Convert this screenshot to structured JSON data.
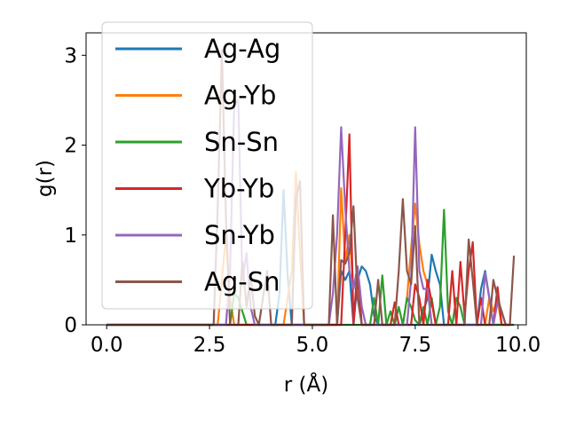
{
  "chart_data": {
    "type": "line",
    "title": "",
    "xlabel": "r (Å)",
    "ylabel": "g(r)",
    "xlim": [
      -0.5,
      10.2
    ],
    "ylim": [
      0,
      3.25
    ],
    "xticks": [
      0.0,
      2.5,
      5.0,
      7.5,
      10.0
    ],
    "xtick_labels": [
      "0.0",
      "2.5",
      "5.0",
      "7.5",
      "10.0"
    ],
    "yticks": [
      0,
      1,
      2,
      3
    ],
    "ytick_labels": [
      "0",
      "1",
      "2",
      "3"
    ],
    "legend_position": "upper-left",
    "series": [
      {
        "name": "Ag-Ag",
        "color": "#1f77b4",
        "x": [
          0,
          3.9,
          4.1,
          4.2,
          4.3,
          4.4,
          4.5,
          5.4,
          5.6,
          5.7,
          5.8,
          5.9,
          6.0,
          6.1,
          6.2,
          6.3,
          6.4,
          6.5,
          6.6,
          7.6,
          7.8,
          7.9,
          8.0,
          8.1,
          8.2,
          9.0,
          9.1,
          9.2,
          9.3,
          9.4,
          9.9
        ],
        "y": [
          0,
          0,
          0,
          0.35,
          1.5,
          0.55,
          0,
          0,
          0,
          0.6,
          0.5,
          0.6,
          0,
          0.5,
          0.65,
          0.6,
          0.45,
          0.1,
          0,
          0,
          0.3,
          0.78,
          0.6,
          0.45,
          0,
          0,
          0.4,
          0.6,
          0.3,
          0,
          0
        ]
      },
      {
        "name": "Ag-Yb",
        "color": "#ff7f0e",
        "x": [
          0,
          2.7,
          2.8,
          2.9,
          3.0,
          3.1,
          4.3,
          4.4,
          4.5,
          4.6,
          4.7,
          4.8,
          5.6,
          5.7,
          5.8,
          5.9,
          6.0,
          6.1,
          6.2,
          7.2,
          7.3,
          7.4,
          7.5,
          7.6,
          7.7,
          7.8,
          7.9,
          8.0,
          8.1,
          9.2,
          9.3,
          9.4,
          9.5,
          9.6,
          9.8
        ],
        "y": [
          0,
          0,
          0.5,
          1.0,
          0.3,
          0,
          0,
          0.3,
          0.6,
          1.7,
          0.8,
          0,
          0,
          1.52,
          0.7,
          1.0,
          0.4,
          0.6,
          0,
          0,
          0.3,
          0.85,
          1.35,
          0.9,
          0.6,
          0.45,
          0,
          0,
          0,
          0,
          0.3,
          0.15,
          0.28,
          0,
          0
        ]
      },
      {
        "name": "Sn-Sn",
        "color": "#2ca02c",
        "x": [
          0,
          3.0,
          3.1,
          3.2,
          3.3,
          3.4,
          6.4,
          6.5,
          6.6,
          6.7,
          6.8,
          6.9,
          7.0,
          7.1,
          7.2,
          7.3,
          7.4,
          7.5,
          7.6,
          7.7,
          7.8,
          7.9,
          8.0,
          8.1,
          8.2,
          8.3,
          8.4,
          8.5,
          8.6,
          8.7,
          9.9
        ],
        "y": [
          0,
          0,
          0.35,
          0.3,
          0.15,
          0,
          0,
          0.3,
          0,
          0.55,
          0,
          0.15,
          0,
          0.2,
          0,
          0.3,
          0.2,
          0.05,
          0,
          0.2,
          0,
          0.3,
          0,
          0.2,
          1.28,
          0.15,
          0,
          0.3,
          0.2,
          0,
          0
        ]
      },
      {
        "name": "Yb-Yb",
        "color": "#d62728",
        "x": [
          0,
          5.7,
          5.8,
          5.9,
          6.0,
          6.1,
          6.2,
          6.9,
          7.0,
          7.1,
          7.4,
          7.5,
          7.6,
          7.7,
          7.8,
          7.9,
          8.0,
          8.3,
          8.4,
          8.5,
          8.6,
          8.7,
          8.8,
          8.9,
          9.0,
          9.1,
          9.2,
          9.4,
          9.5,
          9.6,
          9.8
        ],
        "y": [
          0,
          0,
          1.0,
          2.12,
          0,
          0.65,
          0,
          0,
          0.25,
          0,
          0,
          0.45,
          0.3,
          0,
          0.5,
          0.25,
          0,
          0,
          0.6,
          0,
          0.7,
          0.1,
          0.6,
          0.92,
          0,
          0.3,
          0,
          0,
          0.42,
          0,
          0
        ]
      },
      {
        "name": "Sn-Yb",
        "color": "#9467bd",
        "x": [
          0,
          2.9,
          3.0,
          3.1,
          3.2,
          3.3,
          3.4,
          3.5,
          3.6,
          5.4,
          5.5,
          5.6,
          5.7,
          5.8,
          5.9,
          6.0,
          6.1,
          6.2,
          6.3,
          7.3,
          7.4,
          7.5,
          7.6,
          7.7,
          7.8,
          7.9,
          8.0,
          8.1,
          9.1,
          9.2,
          9.3,
          9.4,
          9.5,
          9.6,
          9.7
        ],
        "y": [
          0,
          0,
          0.6,
          2.45,
          2.5,
          0.5,
          0.8,
          0.2,
          0,
          0,
          0.35,
          1.0,
          2.2,
          1.3,
          0.6,
          0.4,
          0.65,
          0.2,
          0,
          0,
          0.5,
          2.2,
          0.6,
          0.4,
          0.4,
          0,
          0,
          0,
          0,
          0.58,
          0.3,
          0,
          0.25,
          0.15,
          0
        ]
      },
      {
        "name": "Ag-Sn",
        "color": "#8c564b",
        "x": [
          0,
          2.6,
          2.7,
          2.8,
          2.9,
          3.0,
          3.2,
          3.3,
          3.4,
          3.5,
          3.6,
          3.7,
          3.8,
          3.9,
          4.0,
          4.5,
          4.6,
          4.7,
          4.8,
          5.4,
          5.5,
          5.6,
          5.7,
          5.8,
          5.9,
          6.0,
          6.1,
          6.2,
          6.5,
          6.6,
          6.7,
          7.0,
          7.1,
          7.2,
          7.3,
          7.4,
          7.5,
          7.6,
          8.7,
          8.8,
          8.9,
          9.0,
          9.3,
          9.4,
          9.5,
          9.7,
          9.8,
          9.9
        ],
        "y": [
          0,
          0,
          1.3,
          3.05,
          1.2,
          0,
          0,
          0.7,
          0.2,
          0.55,
          0.1,
          0,
          0.3,
          0.6,
          0,
          0,
          1.4,
          1.6,
          0,
          0,
          1.22,
          0,
          0.72,
          0.68,
          0.8,
          1.32,
          0.3,
          0,
          0,
          0.5,
          0,
          0,
          0.6,
          1.4,
          0.6,
          0.45,
          1.1,
          0,
          0,
          0.95,
          0.5,
          0,
          0,
          0.5,
          0.3,
          0,
          0,
          0.77
        ]
      }
    ]
  }
}
